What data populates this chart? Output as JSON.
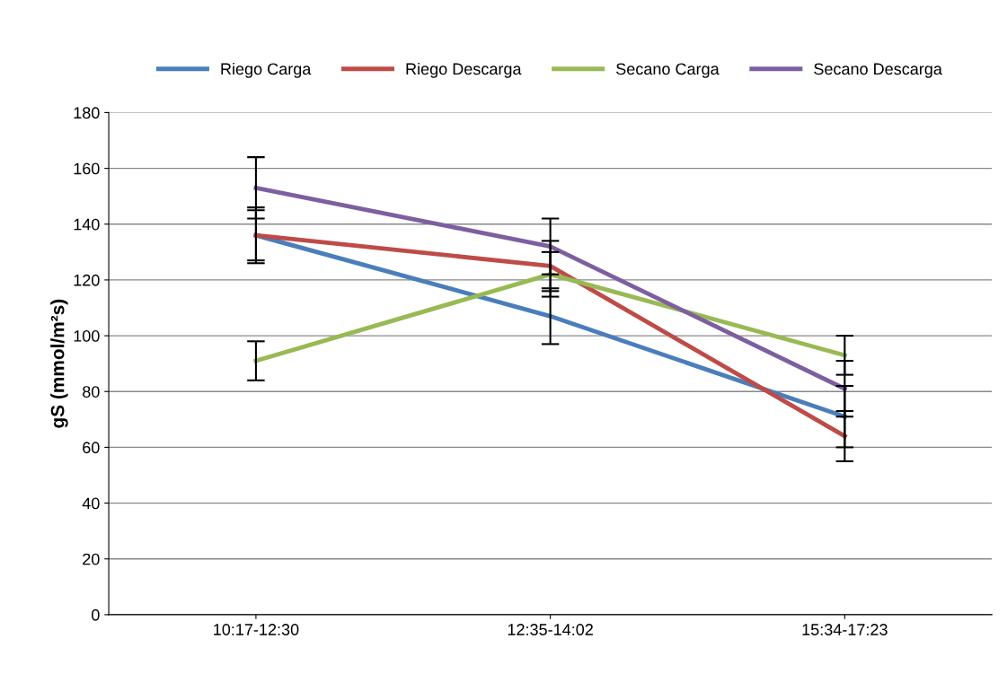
{
  "chart_data": {
    "type": "line",
    "ylabel": "gS (mmol/m²s)",
    "categories": [
      "10:17-12:30",
      "12:35-14:02",
      "15:34-17:23"
    ],
    "series": [
      {
        "name": "Riego Carga",
        "color": "#4a7ebb",
        "values": [
          136,
          107,
          71
        ],
        "errors": [
          10,
          10,
          11
        ]
      },
      {
        "name": "Riego Descarga",
        "color": "#be4b48",
        "values": [
          136,
          125,
          64
        ],
        "errors": [
          9,
          9,
          9
        ]
      },
      {
        "name": "Secano Carga",
        "color": "#98b954",
        "values": [
          91,
          122,
          93
        ],
        "errors": [
          7,
          8,
          7
        ]
      },
      {
        "name": "Secano Descarga",
        "color": "#7d5fa0",
        "values": [
          153,
          132,
          81
        ],
        "errors": [
          11,
          10,
          10
        ]
      }
    ],
    "ylim": [
      0,
      180
    ],
    "yticks": [
      0,
      20,
      40,
      60,
      80,
      100,
      120,
      140,
      160,
      180
    ],
    "grid": "y",
    "legend": "top",
    "marker": "none",
    "line_style": "solid"
  }
}
